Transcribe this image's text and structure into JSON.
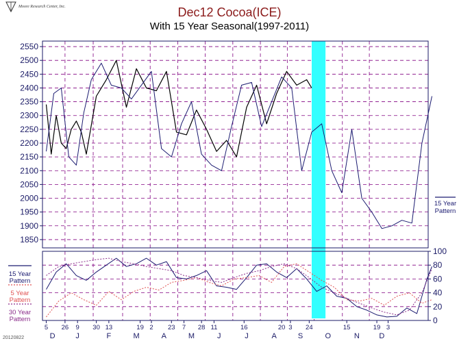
{
  "header": {
    "title": "Dec12 Cocoa(ICE)",
    "subtitle": "With 15 Year Seasonal(1997-2011)",
    "logo_text": "Moore Research Center, Inc.",
    "footer_code": "20120822"
  },
  "colors": {
    "price": "#000000",
    "pattern15": "#1a1a70",
    "pattern5": "#e05050",
    "pattern30": "#8a2a8a",
    "grid": "#800080",
    "highlight": "#33ffff"
  },
  "chart_data": [
    {
      "type": "line",
      "name": "price-panel",
      "ylim": [
        1820,
        2570
      ],
      "y_ticks": [
        1850,
        1900,
        1950,
        2000,
        2050,
        2100,
        2150,
        2200,
        2250,
        2300,
        2350,
        2400,
        2450,
        2500,
        2550
      ],
      "highlight_band": {
        "from_day": 212,
        "to_day": 223
      },
      "series": [
        {
          "name": "Dec12 Cocoa",
          "color": "#000000",
          "x": [
            0,
            4,
            8,
            12,
            16,
            20,
            24,
            28,
            32,
            40,
            48,
            56,
            64,
            72,
            80,
            88,
            96,
            104,
            112,
            120,
            128,
            136,
            144,
            152,
            160,
            168,
            176,
            184,
            192,
            200,
            208,
            212
          ],
          "values": [
            2340,
            2160,
            2300,
            2200,
            2180,
            2250,
            2280,
            2240,
            2160,
            2370,
            2430,
            2500,
            2330,
            2470,
            2400,
            2390,
            2460,
            2240,
            2230,
            2320,
            2250,
            2170,
            2210,
            2150,
            2330,
            2410,
            2270,
            2380,
            2460,
            2410,
            2430,
            2400
          ]
        },
        {
          "name": "15 Year Pattern",
          "color": "#1a1a70",
          "x": [
            0,
            6,
            12,
            18,
            24,
            30,
            36,
            44,
            52,
            60,
            68,
            76,
            84,
            92,
            100,
            108,
            116,
            124,
            132,
            140,
            148,
            156,
            164,
            172,
            180,
            188,
            196,
            204,
            212,
            220,
            228,
            236,
            244,
            252,
            260,
            268,
            276,
            284,
            292,
            300,
            308
          ],
          "values": [
            2170,
            2380,
            2400,
            2150,
            2120,
            2310,
            2430,
            2490,
            2410,
            2400,
            2360,
            2410,
            2460,
            2180,
            2150,
            2270,
            2350,
            2160,
            2120,
            2100,
            2260,
            2410,
            2420,
            2260,
            2350,
            2440,
            2400,
            2100,
            2240,
            2270,
            2100,
            2020,
            2250,
            2000,
            1950,
            1890,
            1900,
            1920,
            1910,
            2200,
            2370
          ]
        }
      ],
      "legend": [
        {
          "label_line1": "15 Year",
          "label_line2": "Pattern",
          "color": "#1a1a70"
        }
      ]
    },
    {
      "type": "line",
      "name": "pattern-panel",
      "ylim": [
        0,
        100
      ],
      "y_ticks": [
        0,
        20,
        40,
        60,
        80,
        100
      ],
      "series": [
        {
          "name": "15 Year Pattern",
          "color": "#1a1a70",
          "x": [
            0,
            8,
            16,
            24,
            32,
            40,
            48,
            56,
            64,
            72,
            80,
            88,
            96,
            104,
            112,
            120,
            128,
            136,
            144,
            152,
            160,
            168,
            176,
            184,
            192,
            200,
            208,
            216,
            224,
            232,
            240,
            248,
            256,
            264,
            272,
            280,
            288,
            296,
            304,
            308
          ],
          "values": [
            45,
            70,
            82,
            65,
            58,
            70,
            80,
            90,
            78,
            82,
            90,
            80,
            85,
            62,
            60,
            65,
            72,
            50,
            48,
            45,
            62,
            80,
            82,
            70,
            62,
            75,
            60,
            42,
            50,
            35,
            32,
            20,
            15,
            8,
            5,
            6,
            18,
            10,
            60,
            78
          ]
        },
        {
          "name": "5 Year Pattern",
          "color": "#e05050",
          "x": [
            0,
            10,
            20,
            30,
            40,
            50,
            60,
            70,
            80,
            90,
            100,
            110,
            120,
            130,
            140,
            150,
            160,
            170,
            180,
            190,
            200,
            210,
            220,
            230,
            240,
            250,
            260,
            270,
            280,
            290,
            300,
            308
          ],
          "values": [
            5,
            28,
            40,
            30,
            22,
            42,
            30,
            42,
            48,
            44,
            55,
            58,
            62,
            55,
            50,
            60,
            62,
            65,
            55,
            78,
            82,
            70,
            58,
            48,
            30,
            28,
            32,
            22,
            35,
            40,
            25,
            30
          ]
        },
        {
          "name": "30 Year Pattern",
          "color": "#8a2a8a",
          "x": [
            0,
            10,
            20,
            30,
            40,
            50,
            60,
            70,
            80,
            90,
            100,
            110,
            120,
            130,
            140,
            150,
            160,
            170,
            180,
            190,
            200,
            210,
            220,
            230,
            240,
            250,
            260,
            270,
            280,
            290,
            300,
            308
          ],
          "values": [
            65,
            78,
            82,
            85,
            88,
            90,
            85,
            82,
            78,
            75,
            72,
            65,
            62,
            58,
            55,
            62,
            68,
            72,
            78,
            82,
            75,
            62,
            48,
            40,
            32,
            25,
            18,
            12,
            8,
            15,
            40,
            75
          ]
        }
      ],
      "legend": [
        {
          "label_line1": "15 Year",
          "label_line2": "Pattern",
          "color": "#1a1a70"
        },
        {
          "label_line1": "5 Year",
          "label_line2": "Pattern",
          "color": "#e05050"
        },
        {
          "label_line1": "30 Year",
          "label_line2": "Pattern",
          "color": "#8a2a8a"
        }
      ]
    }
  ],
  "x_axis": {
    "day_ticks": [
      {
        "label": "5",
        "day": 0
      },
      {
        "label": "26",
        "day": 15
      },
      {
        "label": "9",
        "day": 25
      },
      {
        "label": "30",
        "day": 40
      },
      {
        "label": "13",
        "day": 50
      },
      {
        "label": "19",
        "day": 75
      },
      {
        "label": "2",
        "day": 84
      },
      {
        "label": "23",
        "day": 100
      },
      {
        "label": "7",
        "day": 110
      },
      {
        "label": "28",
        "day": 124
      },
      {
        "label": "11",
        "day": 134
      },
      {
        "label": "16",
        "day": 158
      },
      {
        "label": "20",
        "day": 188
      },
      {
        "label": "3",
        "day": 195
      },
      {
        "label": "24",
        "day": 210
      },
      {
        "label": "15",
        "day": 240
      },
      {
        "label": "19",
        "day": 264
      },
      {
        "label": "3",
        "day": 273
      }
    ],
    "months": [
      {
        "label": "D",
        "day": 5
      },
      {
        "label": "J",
        "day": 25
      },
      {
        "label": "F",
        "day": 50
      },
      {
        "label": "M",
        "day": 72
      },
      {
        "label": "A",
        "day": 94
      },
      {
        "label": "M",
        "day": 116
      },
      {
        "label": "J",
        "day": 138
      },
      {
        "label": "J",
        "day": 160
      },
      {
        "label": "A",
        "day": 182
      },
      {
        "label": "S",
        "day": 203
      },
      {
        "label": "O",
        "day": 225
      },
      {
        "label": "N",
        "day": 248
      },
      {
        "label": "D",
        "day": 268
      }
    ],
    "domain": [
      -3,
      305
    ]
  }
}
